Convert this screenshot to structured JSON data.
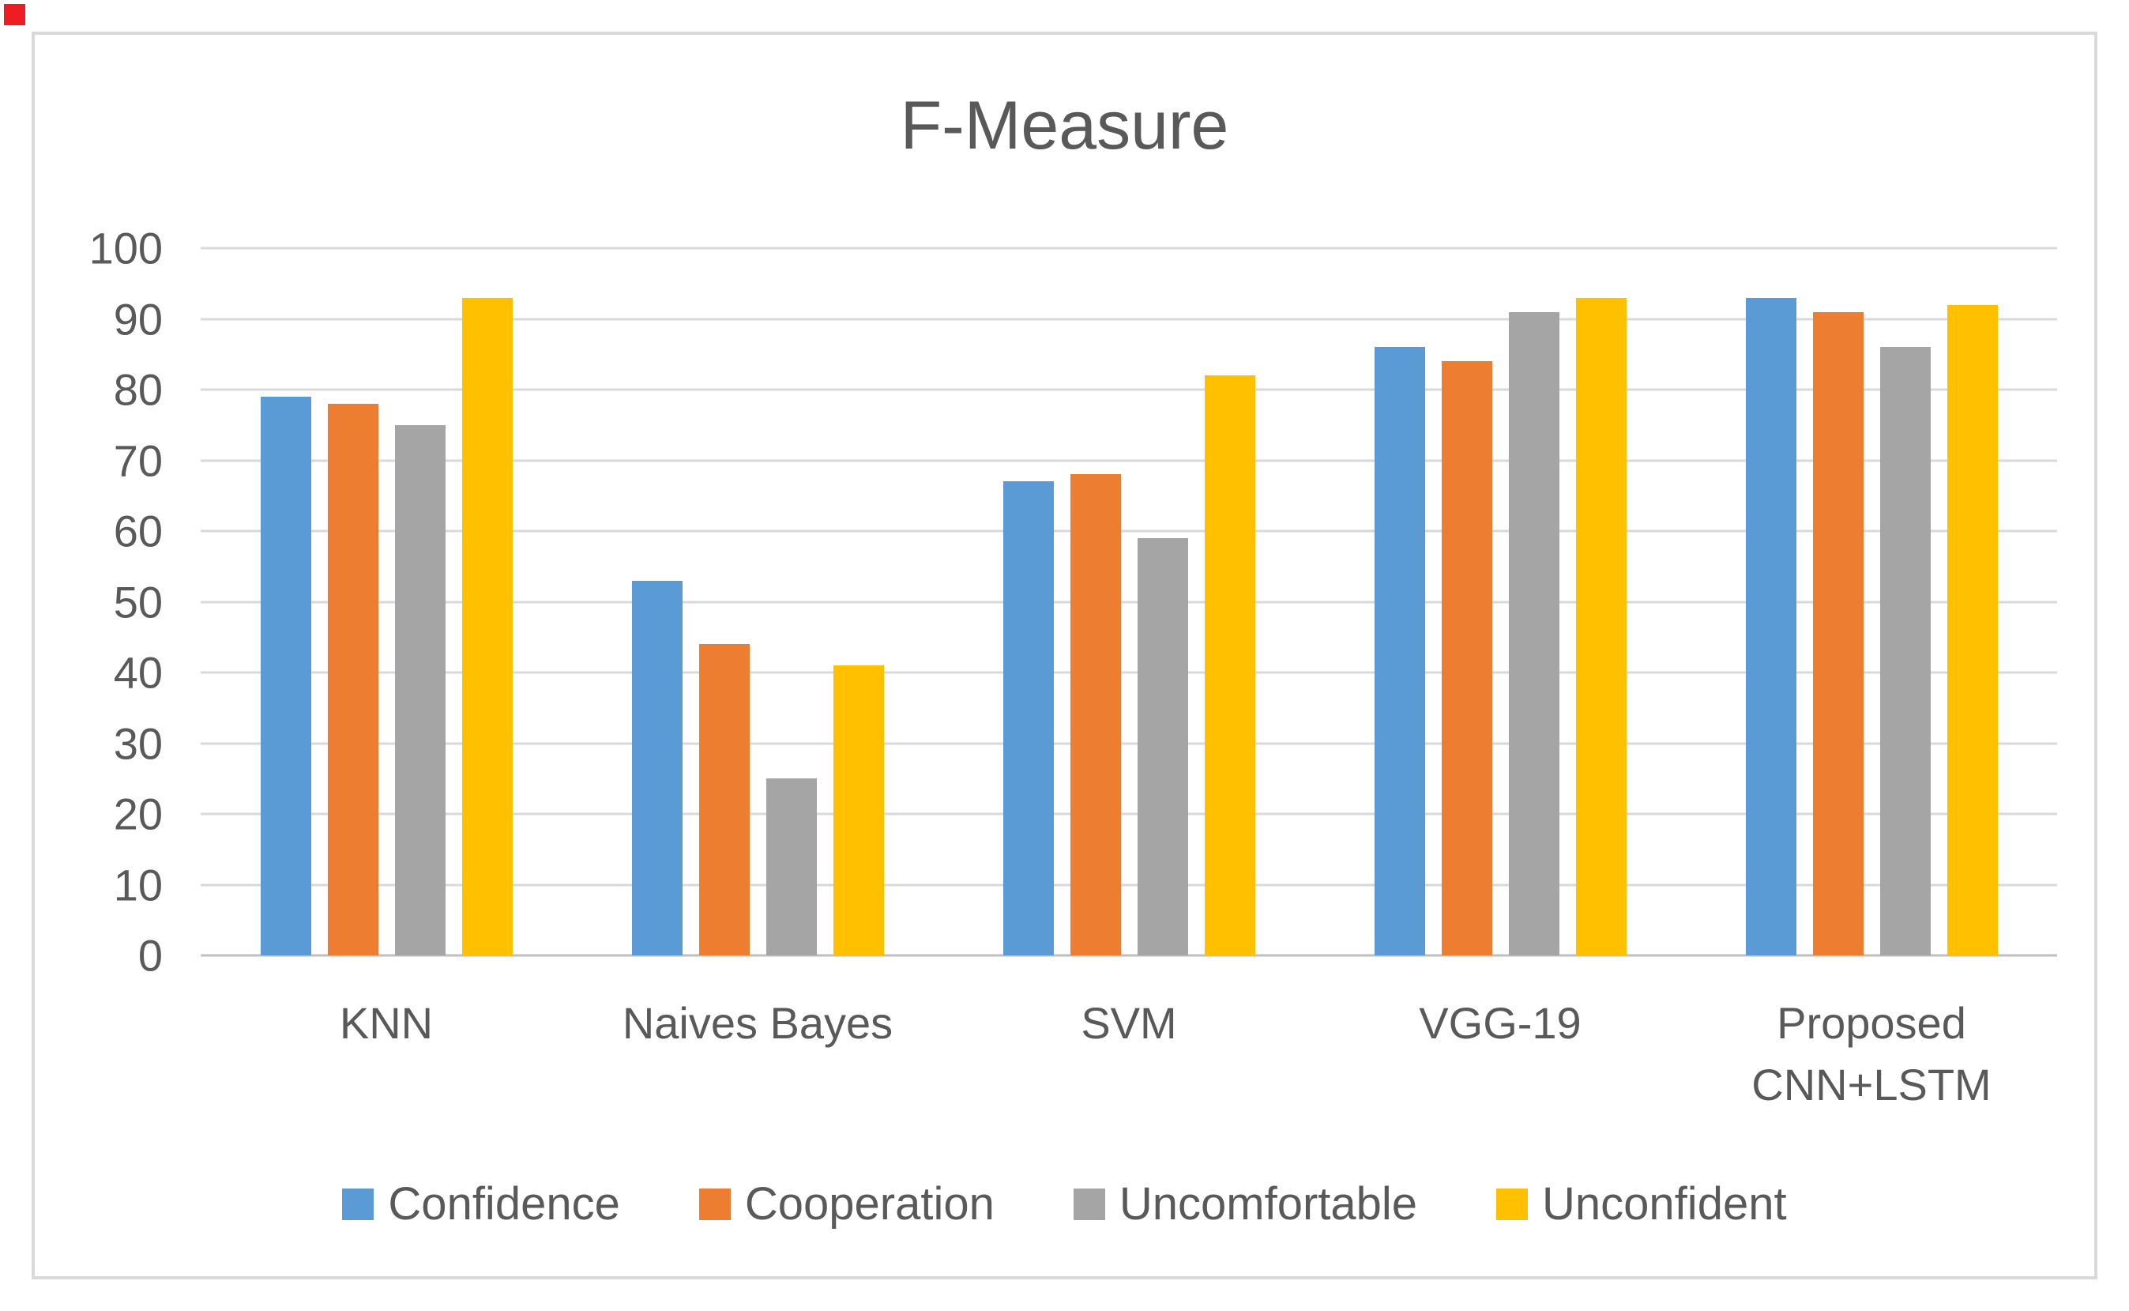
{
  "corner_marker": {
    "color": "#ee1c23"
  },
  "frame": {
    "border_color": "#d9d9d9",
    "background": "#ffffff"
  },
  "chart_data": {
    "type": "bar",
    "title": "F-Measure",
    "categories": [
      "KNN",
      "Naives Bayes",
      "SVM",
      "VGG-19",
      "Proposed CNN+LSTM"
    ],
    "category_labels": [
      [
        "KNN"
      ],
      [
        "Naives Bayes"
      ],
      [
        "SVM"
      ],
      [
        "VGG-19"
      ],
      [
        "Proposed",
        "CNN+LSTM"
      ]
    ],
    "series": [
      {
        "name": "Confidence",
        "color": "#5B9BD5",
        "values": [
          79,
          53,
          67,
          86,
          93
        ]
      },
      {
        "name": "Cooperation",
        "color": "#ED7D31",
        "values": [
          78,
          44,
          68,
          84,
          91
        ]
      },
      {
        "name": "Uncomfortable",
        "color": "#A5A5A5",
        "values": [
          75,
          25,
          59,
          91,
          86
        ]
      },
      {
        "name": "Unconfident",
        "color": "#FFC000",
        "values": [
          93,
          41,
          82,
          93,
          92
        ]
      }
    ],
    "xlabel": "",
    "ylabel": "",
    "ylim": [
      0,
      100
    ],
    "yticks": [
      0,
      10,
      20,
      30,
      40,
      50,
      60,
      70,
      80,
      90,
      100
    ],
    "grid": true,
    "gridline_color": "#d9d9d9",
    "axis_line_color": "#bfbfbf",
    "text_color": "#595959",
    "legend_position": "bottom"
  }
}
